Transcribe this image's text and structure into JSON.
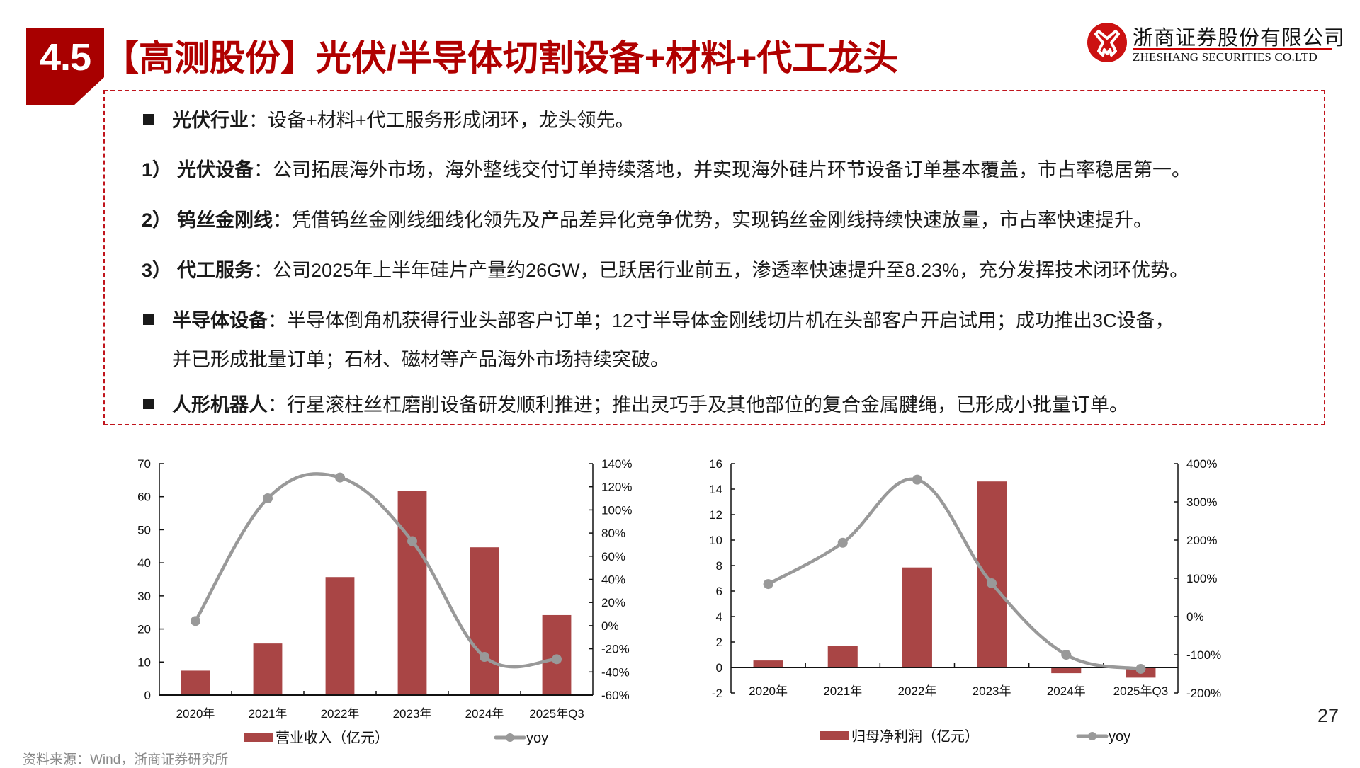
{
  "header": {
    "section_number": "4.5",
    "title": "【高测股份】光伏/半导体切割设备+材料+代工龙头",
    "logo": {
      "icon": "zheshang-logo-icon",
      "name_cn": "浙商证券股份有限公司",
      "name_en": "ZHESHANG SECURITIES CO.LTD",
      "color": "#cc1111"
    }
  },
  "content": {
    "lines": [
      {
        "type": "bullet",
        "head": "光伏行业",
        "text": "：设备+材料+代工服务形成闭环，龙头领先。"
      },
      {
        "type": "numbered",
        "num": "1）",
        "head": "光伏设备",
        "text": "：公司拓展海外市场，海外整线交付订单持续落地，并实现海外硅片环节设备订单基本覆盖，市占率稳居第一。"
      },
      {
        "type": "numbered",
        "num": "2）",
        "head": "钨丝金刚线",
        "text": "：凭借钨丝金刚线细线化领先及产品差异化竞争优势，实现钨丝金刚线持续快速放量，市占率快速提升。"
      },
      {
        "type": "numbered",
        "num": "3）",
        "head": "代工服务",
        "text": "：公司2025年上半年硅片产量约26GW，已跃居行业前五，渗透率快速提升至8.23%，充分发挥技术闭环优势。"
      },
      {
        "type": "bullet",
        "head": "半导体设备",
        "text": "：半导体倒角机获得行业头部客户订单；12寸半导体金刚线切片机在头部客户开启试用；成功推出3C设备，"
      },
      {
        "type": "continuation",
        "text": "并已形成批量订单；石材、磁材等产品海外市场持续突破。"
      },
      {
        "type": "bullet",
        "head": "人形机器人",
        "text": "：行星滚柱丝杠磨削设备研发顺利推进；推出灵巧手及其他部位的复合金属腱绳，已形成小批量订单。"
      }
    ]
  },
  "chart_data": [
    {
      "type": "bar+line",
      "title": "",
      "categories": [
        "2020年",
        "2021年",
        "2022年",
        "2023年",
        "2024年",
        "2025年Q3"
      ],
      "series": [
        {
          "name": "营业收入（亿元）",
          "type": "bar",
          "axis": "left",
          "color": "#a94545",
          "values": [
            7.4,
            15.6,
            35.7,
            61.8,
            44.7,
            24.2
          ]
        },
        {
          "name": "yoy",
          "type": "line",
          "axis": "right",
          "color": "#999999",
          "values": [
            4,
            110,
            128,
            73,
            -27,
            -29
          ],
          "unit": "%"
        }
      ],
      "ylim_left": [
        0,
        70
      ],
      "yticks_left": [
        0,
        10,
        20,
        30,
        40,
        50,
        60,
        70
      ],
      "ylim_right": [
        -60,
        140
      ],
      "yticks_right": [
        "-60%",
        "-40%",
        "-20%",
        "0%",
        "20%",
        "40%",
        "60%",
        "80%",
        "100%",
        "120%",
        "140%"
      ],
      "grid": false,
      "legend_position": "bottom"
    },
    {
      "type": "bar+line",
      "title": "",
      "categories": [
        "2020年",
        "2021年",
        "2022年",
        "2023年",
        "2024年",
        "2025年Q3"
      ],
      "series": [
        {
          "name": "归母净利润（亿元）",
          "type": "bar",
          "axis": "left",
          "color": "#a94545",
          "values": [
            0.55,
            1.7,
            7.85,
            14.6,
            -0.45,
            -0.8
          ]
        },
        {
          "name": "yoy",
          "type": "line",
          "axis": "right",
          "color": "#999999",
          "values": [
            85,
            193,
            358,
            87,
            -100,
            -137
          ],
          "unit": "%"
        }
      ],
      "ylim_left": [
        -2,
        16
      ],
      "yticks_left": [
        -2,
        0,
        2,
        4,
        6,
        8,
        10,
        12,
        14,
        16
      ],
      "ylim_right": [
        -200,
        400
      ],
      "yticks_right": [
        "-200%",
        "-100%",
        "0%",
        "100%",
        "200%",
        "300%",
        "400%"
      ],
      "grid": false,
      "legend_position": "bottom"
    }
  ],
  "footer": {
    "source": "资料来源：Wind，浙商证券研究所",
    "page_number": "27"
  }
}
